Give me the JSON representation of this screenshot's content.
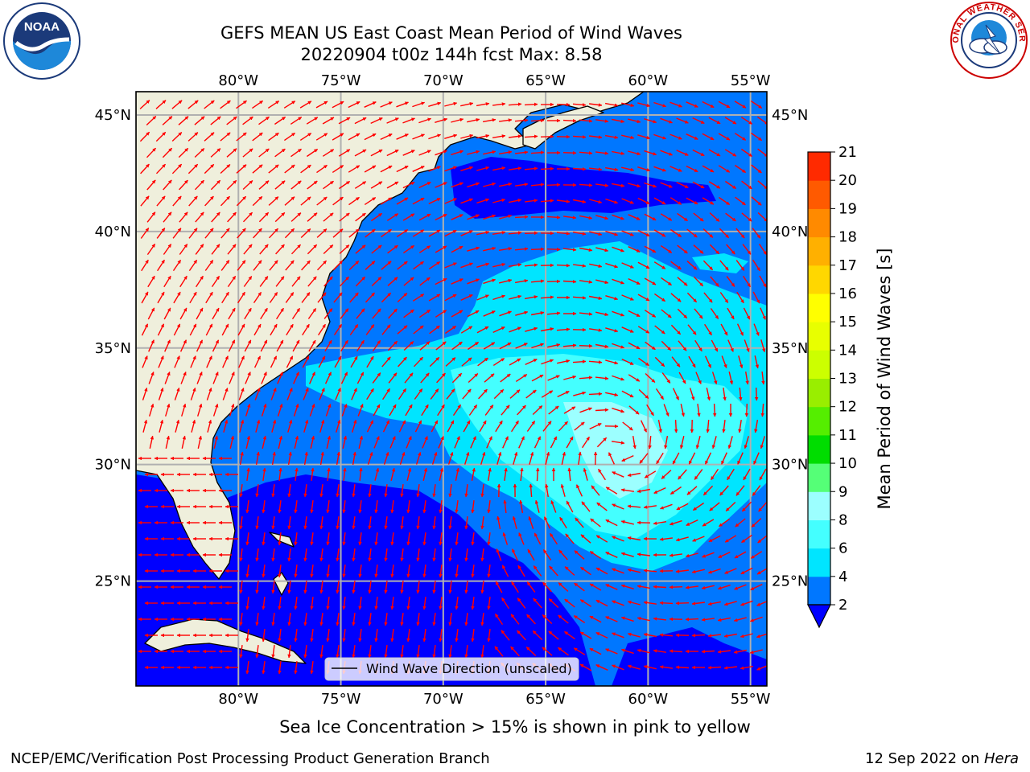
{
  "title": {
    "line1": "GEFS MEAN US East Coast Mean Period of Wind Waves",
    "line2": "20220904 t00z 144h fcst   Max: 8.58"
  },
  "logos": {
    "left": {
      "name": "noaa-logo",
      "text": "NOAA",
      "ring_text": "NATIONAL OCEANIC AND ATMOSPHERIC ADMINISTRATION · U.S. DEPARTMENT OF COMMERCE"
    },
    "right": {
      "name": "national-weather-service-logo",
      "ring_text": "NATIONAL WEATHER SERVICE"
    }
  },
  "map": {
    "lon_range": [
      -85,
      -54.2
    ],
    "lat_range": [
      20.5,
      46
    ],
    "lon_ticks": [
      {
        "value": -80,
        "label": "80°W"
      },
      {
        "value": -75,
        "label": "75°W"
      },
      {
        "value": -70,
        "label": "70°W"
      },
      {
        "value": -65,
        "label": "65°W"
      },
      {
        "value": -60,
        "label": "60°W"
      },
      {
        "value": -55,
        "label": "55°W"
      }
    ],
    "lat_ticks": [
      {
        "value": 45,
        "label": "45°N"
      },
      {
        "value": 40,
        "label": "40°N"
      },
      {
        "value": 35,
        "label": "35°N"
      },
      {
        "value": 30,
        "label": "30°N"
      },
      {
        "value": 25,
        "label": "25°N"
      }
    ],
    "gridlines": true,
    "legend_label": "Wind Wave Direction (unscaled)",
    "legend_position": "bottom-center",
    "colors": {
      "land": "#efefdc",
      "arrows": "#ff0000",
      "grid": "#b0b0b0"
    }
  },
  "colorbar": {
    "label": "Mean Period of Wind Waves [s]",
    "ticks": [
      "2",
      "4",
      "6",
      "8",
      "9",
      "10",
      "11",
      "12",
      "13",
      "14",
      "15",
      "16",
      "17",
      "18",
      "19",
      "20",
      "21"
    ],
    "colors": [
      "#0077ff",
      "#00e5ff",
      "#44ffff",
      "#9cffff",
      "#55ff77",
      "#00dd00",
      "#55ee00",
      "#99ee00",
      "#ccff00",
      "#e8ff00",
      "#ffff00",
      "#ffd700",
      "#ffb000",
      "#ff8a00",
      "#ff5a00",
      "#ff2a00"
    ],
    "under_color": "#0000ff",
    "extend": "min"
  },
  "caption": "Sea Ice Concentration > 15% is shown in pink to yellow",
  "footer": {
    "left": "NCEP/EMC/Verification Post Processing Product Generation Branch",
    "right_prefix": "12 Sep 2022 on ",
    "right_italic": "Hera"
  }
}
